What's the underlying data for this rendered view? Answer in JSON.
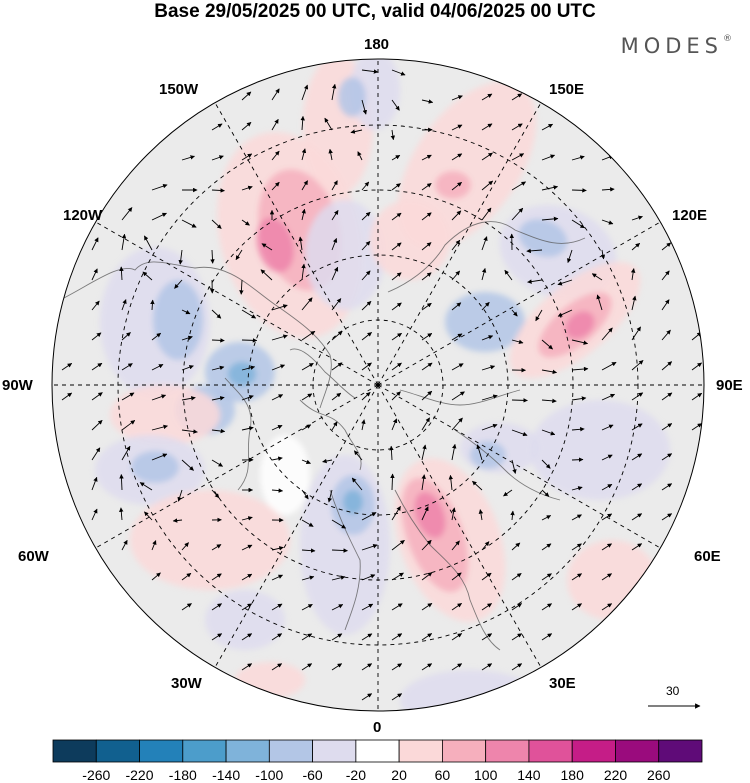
{
  "header": {
    "title": "Base 29/05/2025 00 UTC, valid 04/06/2025 00 UTC"
  },
  "brand": {
    "name": "MODES",
    "mark": "®"
  },
  "map": {
    "projection": "north-polar-stereographic",
    "longitude_labels": {
      "lon_180": "180",
      "lon_150w": "150W",
      "lon_150e": "150E",
      "lon_120w": "120W",
      "lon_120e": "120E",
      "lon_90w": "90W",
      "lon_90e": "90E",
      "lon_60w": "60W",
      "lon_60e": "60E",
      "lon_30w": "30W",
      "lon_30e": "30E",
      "lon_0": "0"
    },
    "reference_vector": {
      "label": "30"
    },
    "background_color": "#ebebeb",
    "coast_color": "#555555"
  },
  "colorbar": {
    "colors": [
      "#0d3b5c",
      "#11608f",
      "#2381b9",
      "#4c9dcb",
      "#7fb3da",
      "#b3c6e6",
      "#dedcee",
      "#ffffff",
      "#fbd9d9",
      "#f6afbd",
      "#ee85ac",
      "#e0529a",
      "#c51d87",
      "#9a0b7d",
      "#5f0b78"
    ],
    "tick_labels": [
      "-260",
      "-220",
      "-180",
      "-140",
      "-100",
      "-60",
      "-20",
      "20",
      "60",
      "100",
      "140",
      "180",
      "220",
      "260"
    ]
  },
  "chart_data": {
    "type": "heatmap",
    "title": "Base 29/05/2025 00 UTC, valid 04/06/2025 00 UTC",
    "levels": [
      -260,
      -220,
      -180,
      -140,
      -100,
      -60,
      -20,
      20,
      60,
      100,
      140,
      180,
      220,
      260
    ],
    "longitude_ticks": [
      "0",
      "30E",
      "60E",
      "90E",
      "120E",
      "150E",
      "180",
      "150W",
      "120W",
      "90W",
      "60W",
      "30W"
    ],
    "reference_vector": 30
  }
}
